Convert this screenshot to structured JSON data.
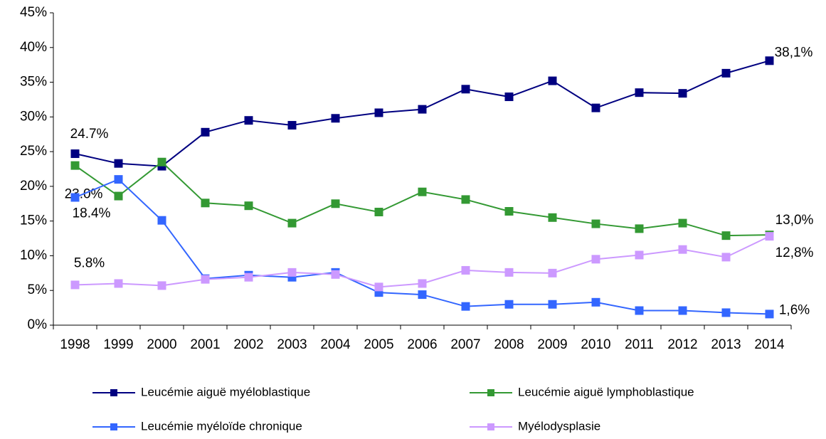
{
  "chart_data": {
    "type": "line",
    "categories": [
      "1998",
      "1999",
      "2000",
      "2001",
      "2002",
      "2003",
      "2004",
      "2005",
      "2006",
      "2007",
      "2008",
      "2009",
      "2010",
      "2011",
      "2012",
      "2013",
      "2014"
    ],
    "ylim": [
      0,
      45
    ],
    "yticks": [
      {
        "value": 0,
        "label": "0%"
      },
      {
        "value": 5,
        "label": "5%"
      },
      {
        "value": 10,
        "label": "10%"
      },
      {
        "value": 15,
        "label": "15%"
      },
      {
        "value": 20,
        "label": "20%"
      },
      {
        "value": 25,
        "label": "25%"
      },
      {
        "value": 30,
        "label": "30%"
      },
      {
        "value": 35,
        "label": "35%"
      },
      {
        "value": 40,
        "label": "40%"
      },
      {
        "value": 45,
        "label": "45%"
      }
    ],
    "grid": false,
    "legend": "bottom",
    "series": [
      {
        "name": "Leucémie aiguë myéloblastique",
        "color": "#000080",
        "values": [
          24.7,
          23.3,
          22.9,
          27.8,
          29.5,
          28.8,
          29.8,
          30.6,
          31.1,
          34.0,
          32.9,
          35.2,
          31.3,
          33.5,
          33.4,
          36.3,
          38.1
        ],
        "value_labels": [
          "24.7%",
          null,
          null,
          null,
          null,
          null,
          null,
          null,
          null,
          null,
          null,
          null,
          null,
          null,
          null,
          null,
          "38,1%"
        ]
      },
      {
        "name": "Leucémie aiguë lymphoblastique",
        "color": "#339933",
        "values": [
          23.0,
          18.6,
          23.5,
          17.6,
          17.2,
          14.7,
          17.5,
          16.3,
          19.2,
          18.1,
          16.4,
          15.5,
          14.6,
          13.9,
          14.7,
          12.9,
          13.0
        ],
        "value_labels": [
          "23.0%",
          null,
          null,
          null,
          null,
          null,
          null,
          null,
          null,
          null,
          null,
          null,
          null,
          null,
          null,
          null,
          "13,0%"
        ]
      },
      {
        "name": "Leucémie myéloïde chronique",
        "color": "#3366ff",
        "values": [
          18.4,
          21.0,
          15.1,
          6.7,
          7.2,
          6.9,
          7.6,
          4.7,
          4.4,
          2.7,
          3.0,
          3.0,
          3.3,
          2.1,
          2.1,
          1.8,
          1.6
        ],
        "value_labels": [
          "18.4%",
          null,
          null,
          null,
          null,
          null,
          null,
          null,
          null,
          null,
          null,
          null,
          null,
          null,
          null,
          null,
          "1,6%"
        ]
      },
      {
        "name": "Myélodysplasie",
        "color": "#cc99ff",
        "values": [
          5.8,
          6.0,
          5.7,
          6.6,
          6.9,
          7.6,
          7.3,
          5.5,
          6.0,
          7.9,
          7.6,
          7.5,
          9.5,
          10.1,
          10.9,
          9.8,
          12.8
        ],
        "value_labels": [
          "5.8%",
          null,
          null,
          null,
          null,
          null,
          null,
          null,
          null,
          null,
          null,
          null,
          null,
          null,
          null,
          null,
          "12,8%"
        ]
      }
    ]
  }
}
